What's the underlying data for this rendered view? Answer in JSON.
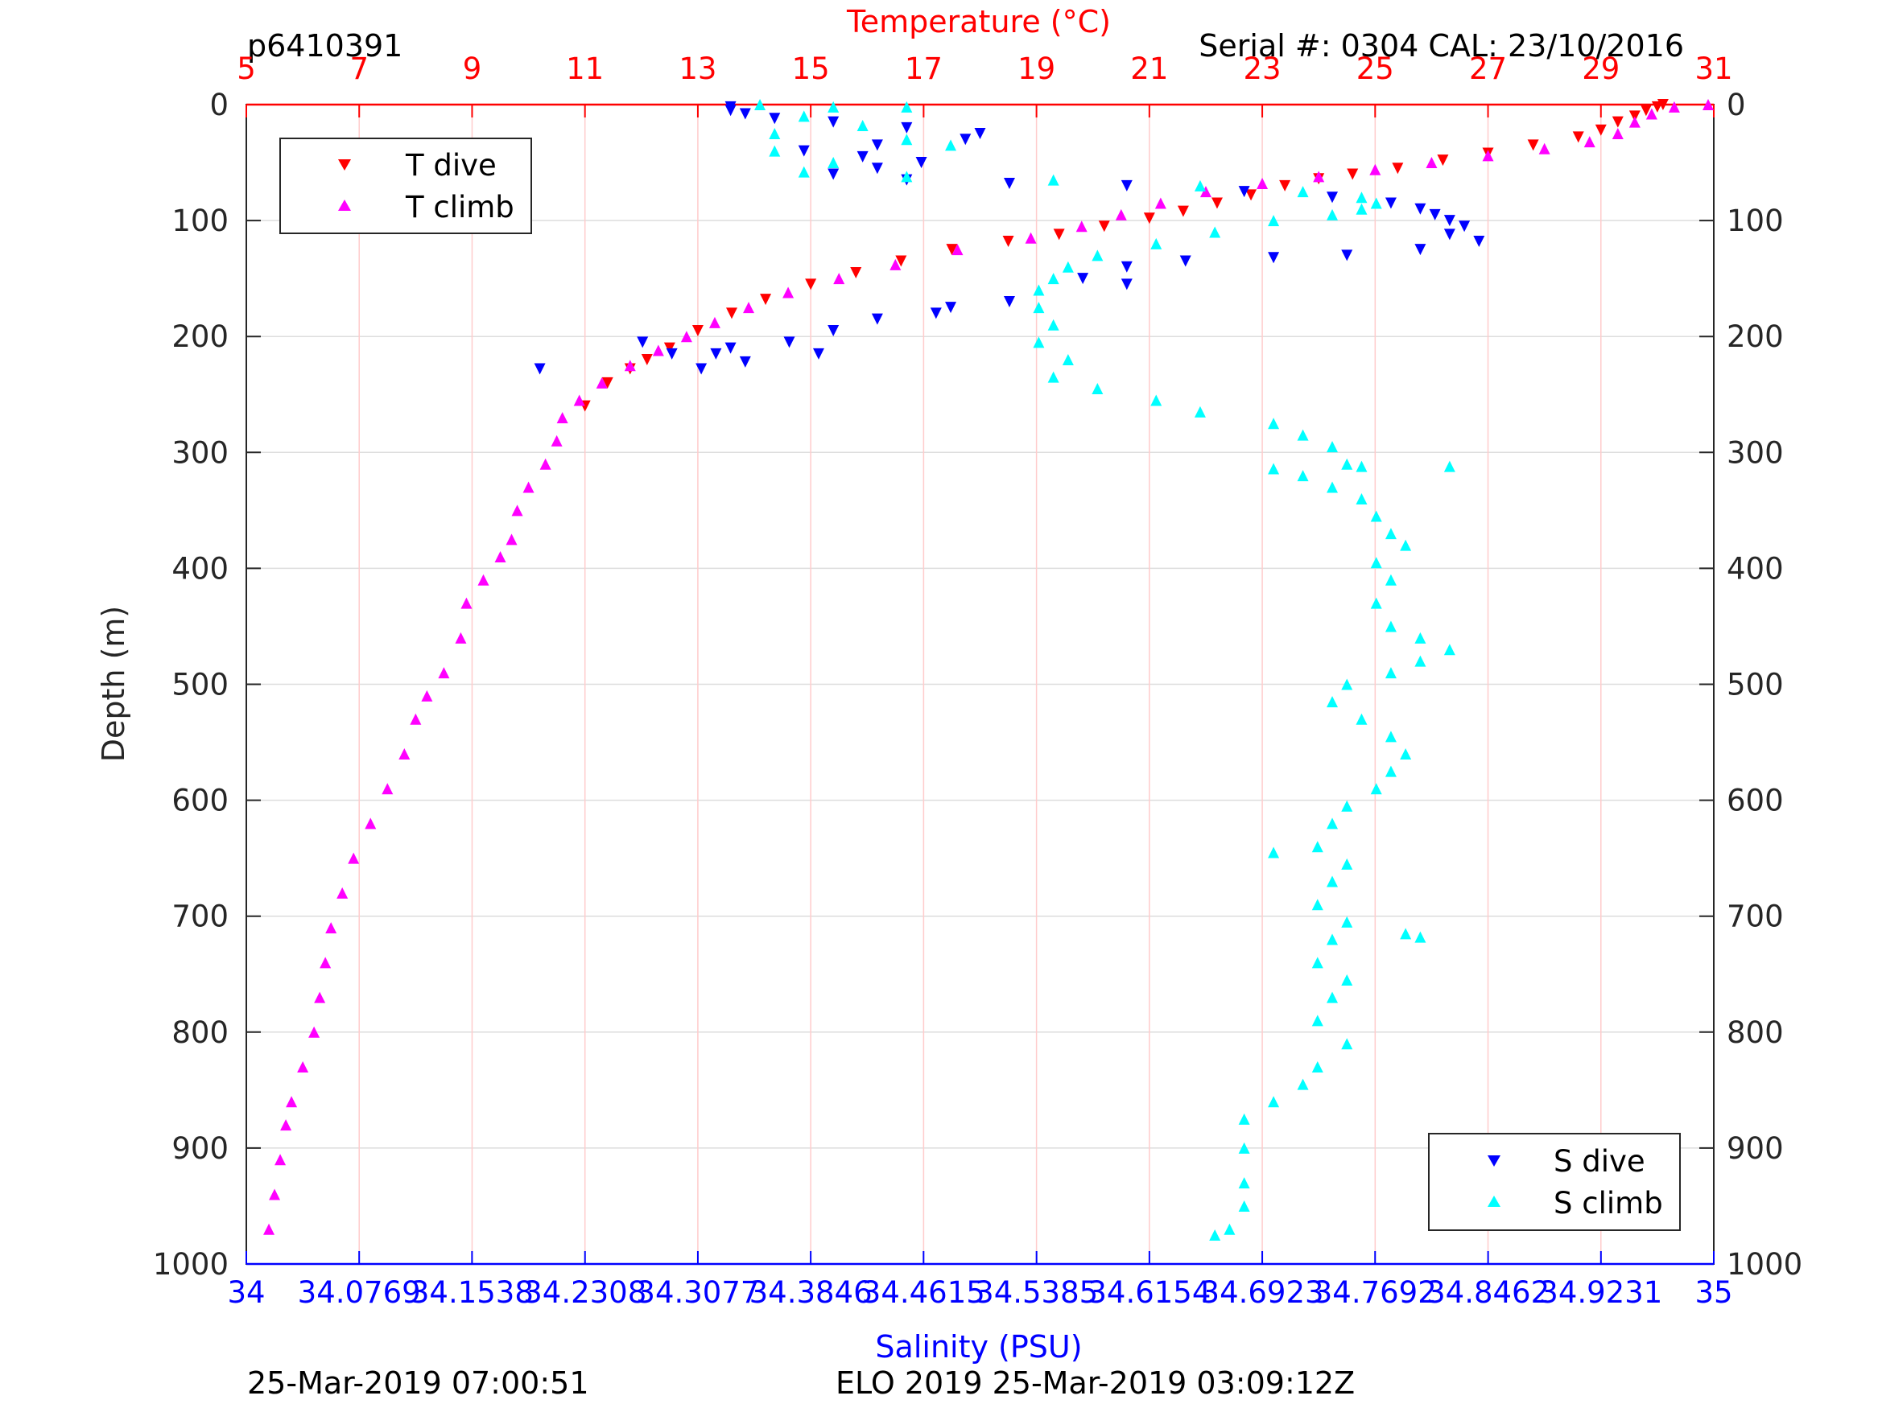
{
  "header": {
    "id": "p6410391",
    "serial": "Serial #: 0304  CAL: 23/10/2016"
  },
  "footer": {
    "left": "25-Mar-2019 07:00:51",
    "center": "ELO 2019 25-Mar-2019 03:09:12Z"
  },
  "colors": {
    "t_dive": "#ff0000",
    "t_climb": "#ff00ff",
    "s_dive": "#0000ff",
    "s_climb": "#00ffff",
    "temp_axis": "#ff0000",
    "sal_axis": "#0000ff",
    "temp_grid": "#ffcccc",
    "depth_grid": "#dddddd"
  },
  "chart_data": {
    "type": "scatter",
    "title": "",
    "temperature_axis": {
      "label": "Temperature (°C)",
      "range": [
        5,
        31
      ],
      "ticks": [
        "5",
        "7",
        "9",
        "11",
        "13",
        "15",
        "17",
        "19",
        "21",
        "23",
        "25",
        "27",
        "29",
        "31"
      ]
    },
    "salinity_axis": {
      "label": "Salinity (PSU)",
      "range": [
        34,
        35
      ],
      "ticks": [
        "34",
        "34.0769",
        "34.1538",
        "34.2308",
        "34.3077",
        "34.3846",
        "34.4615",
        "34.5385",
        "34.6154",
        "34.6923",
        "34.7692",
        "34.8462",
        "34.9231",
        "35"
      ]
    },
    "depth_axis": {
      "label": "Depth (m)",
      "range": [
        0,
        1000
      ],
      "reversed": true,
      "ticks": [
        "0",
        "100",
        "200",
        "300",
        "400",
        "500",
        "600",
        "700",
        "800",
        "900",
        "1000"
      ]
    },
    "grid": true,
    "legends": [
      {
        "position": "top-left",
        "entries": [
          "T dive",
          "T climb"
        ]
      },
      {
        "position": "bottom-right",
        "entries": [
          "S dive",
          "S climb"
        ]
      }
    ],
    "series": [
      {
        "name": "T dive",
        "variable": "temperature",
        "marker": "triangle-down",
        "points": [
          [
            30.1,
            0
          ],
          [
            30.0,
            2
          ],
          [
            29.8,
            5
          ],
          [
            29.6,
            10
          ],
          [
            29.3,
            15
          ],
          [
            29.0,
            22
          ],
          [
            28.6,
            28
          ],
          [
            27.8,
            35
          ],
          [
            27.0,
            42
          ],
          [
            26.2,
            48
          ],
          [
            25.4,
            55
          ],
          [
            24.6,
            60
          ],
          [
            24.0,
            64
          ],
          [
            23.4,
            70
          ],
          [
            22.8,
            78
          ],
          [
            22.2,
            85
          ],
          [
            21.6,
            92
          ],
          [
            21.0,
            98
          ],
          [
            20.2,
            105
          ],
          [
            19.4,
            112
          ],
          [
            18.5,
            118
          ],
          [
            17.5,
            125
          ],
          [
            16.6,
            135
          ],
          [
            15.8,
            145
          ],
          [
            15.0,
            155
          ],
          [
            14.2,
            168
          ],
          [
            13.6,
            180
          ],
          [
            13.0,
            195
          ],
          [
            12.5,
            210
          ],
          [
            12.1,
            220
          ],
          [
            11.8,
            228
          ],
          [
            11.4,
            240
          ],
          [
            11.0,
            260
          ]
        ]
      },
      {
        "name": "T climb",
        "variable": "temperature",
        "marker": "triangle-up",
        "points": [
          [
            30.9,
            0
          ],
          [
            30.3,
            2
          ],
          [
            29.9,
            8
          ],
          [
            29.6,
            15
          ],
          [
            29.3,
            25
          ],
          [
            28.8,
            32
          ],
          [
            28.0,
            38
          ],
          [
            27.0,
            44
          ],
          [
            26.0,
            50
          ],
          [
            25.0,
            56
          ],
          [
            24.0,
            62
          ],
          [
            23.0,
            68
          ],
          [
            22.0,
            75
          ],
          [
            21.2,
            85
          ],
          [
            20.5,
            95
          ],
          [
            19.8,
            105
          ],
          [
            18.9,
            115
          ],
          [
            17.6,
            125
          ],
          [
            16.5,
            138
          ],
          [
            15.5,
            150
          ],
          [
            14.6,
            162
          ],
          [
            13.9,
            175
          ],
          [
            13.3,
            188
          ],
          [
            12.8,
            200
          ],
          [
            12.3,
            212
          ],
          [
            11.8,
            225
          ],
          [
            11.3,
            240
          ],
          [
            10.9,
            255
          ],
          [
            10.6,
            270
          ],
          [
            10.5,
            290
          ],
          [
            10.3,
            310
          ],
          [
            10.0,
            330
          ],
          [
            9.8,
            350
          ],
          [
            9.7,
            375
          ],
          [
            9.5,
            390
          ],
          [
            9.2,
            410
          ],
          [
            8.9,
            430
          ],
          [
            8.8,
            460
          ],
          [
            8.5,
            490
          ],
          [
            8.2,
            510
          ],
          [
            8.0,
            530
          ],
          [
            7.8,
            560
          ],
          [
            7.5,
            590
          ],
          [
            7.2,
            620
          ],
          [
            6.9,
            650
          ],
          [
            6.7,
            680
          ],
          [
            6.5,
            710
          ],
          [
            6.4,
            740
          ],
          [
            6.3,
            770
          ],
          [
            6.2,
            800
          ],
          [
            6.0,
            830
          ],
          [
            5.8,
            860
          ],
          [
            5.7,
            880
          ],
          [
            5.6,
            910
          ],
          [
            5.5,
            940
          ],
          [
            5.4,
            970
          ]
        ]
      },
      {
        "name": "S dive",
        "variable": "salinity",
        "marker": "triangle-down",
        "points": [
          [
            34.33,
            2
          ],
          [
            34.33,
            5
          ],
          [
            34.34,
            8
          ],
          [
            34.36,
            12
          ],
          [
            34.4,
            15
          ],
          [
            34.45,
            20
          ],
          [
            34.5,
            25
          ],
          [
            34.49,
            30
          ],
          [
            34.43,
            35
          ],
          [
            34.38,
            40
          ],
          [
            34.42,
            45
          ],
          [
            34.46,
            50
          ],
          [
            34.43,
            55
          ],
          [
            34.4,
            60
          ],
          [
            34.45,
            65
          ],
          [
            34.52,
            68
          ],
          [
            34.6,
            70
          ],
          [
            34.68,
            75
          ],
          [
            34.74,
            80
          ],
          [
            34.78,
            85
          ],
          [
            34.8,
            90
          ],
          [
            34.81,
            95
          ],
          [
            34.82,
            100
          ],
          [
            34.83,
            105
          ],
          [
            34.82,
            112
          ],
          [
            34.84,
            118
          ],
          [
            34.8,
            125
          ],
          [
            34.75,
            130
          ],
          [
            34.7,
            132
          ],
          [
            34.64,
            135
          ],
          [
            34.6,
            140
          ],
          [
            34.57,
            150
          ],
          [
            34.6,
            155
          ],
          [
            34.52,
            170
          ],
          [
            34.48,
            175
          ],
          [
            34.43,
            185
          ],
          [
            34.4,
            195
          ],
          [
            34.37,
            205
          ],
          [
            34.33,
            210
          ],
          [
            34.32,
            215
          ],
          [
            34.34,
            222
          ],
          [
            34.31,
            228
          ],
          [
            34.29,
            215
          ],
          [
            34.27,
            205
          ],
          [
            34.2,
            228
          ],
          [
            34.39,
            215
          ],
          [
            34.47,
            180
          ]
        ]
      },
      {
        "name": "S climb",
        "variable": "salinity",
        "marker": "triangle-up",
        "points": [
          [
            34.35,
            0
          ],
          [
            34.4,
            2
          ],
          [
            34.45,
            2
          ],
          [
            34.38,
            10
          ],
          [
            34.42,
            18
          ],
          [
            34.36,
            25
          ],
          [
            34.45,
            30
          ],
          [
            34.48,
            35
          ],
          [
            34.36,
            40
          ],
          [
            34.4,
            50
          ],
          [
            34.38,
            58
          ],
          [
            34.45,
            62
          ],
          [
            34.55,
            65
          ],
          [
            34.65,
            70
          ],
          [
            34.72,
            75
          ],
          [
            34.76,
            80
          ],
          [
            34.77,
            85
          ],
          [
            34.76,
            90
          ],
          [
            34.74,
            95
          ],
          [
            34.7,
            100
          ],
          [
            34.66,
            110
          ],
          [
            34.62,
            120
          ],
          [
            34.58,
            130
          ],
          [
            34.56,
            140
          ],
          [
            34.55,
            150
          ],
          [
            34.54,
            160
          ],
          [
            34.54,
            175
          ],
          [
            34.55,
            190
          ],
          [
            34.54,
            205
          ],
          [
            34.56,
            220
          ],
          [
            34.55,
            235
          ],
          [
            34.58,
            245
          ],
          [
            34.62,
            255
          ],
          [
            34.65,
            265
          ],
          [
            34.7,
            275
          ],
          [
            34.72,
            285
          ],
          [
            34.74,
            295
          ],
          [
            34.75,
            310
          ],
          [
            34.72,
            320
          ],
          [
            34.74,
            330
          ],
          [
            34.76,
            340
          ],
          [
            34.77,
            355
          ],
          [
            34.78,
            370
          ],
          [
            34.79,
            380
          ],
          [
            34.77,
            395
          ],
          [
            34.78,
            410
          ],
          [
            34.77,
            430
          ],
          [
            34.78,
            450
          ],
          [
            34.8,
            460
          ],
          [
            34.82,
            470
          ],
          [
            34.8,
            480
          ],
          [
            34.78,
            490
          ],
          [
            34.75,
            500
          ],
          [
            34.74,
            515
          ],
          [
            34.76,
            530
          ],
          [
            34.78,
            545
          ],
          [
            34.79,
            560
          ],
          [
            34.78,
            575
          ],
          [
            34.77,
            590
          ],
          [
            34.75,
            605
          ],
          [
            34.74,
            620
          ],
          [
            34.73,
            640
          ],
          [
            34.75,
            655
          ],
          [
            34.74,
            670
          ],
          [
            34.73,
            690
          ],
          [
            34.75,
            705
          ],
          [
            34.74,
            720
          ],
          [
            34.73,
            740
          ],
          [
            34.75,
            755
          ],
          [
            34.74,
            770
          ],
          [
            34.73,
            790
          ],
          [
            34.75,
            810
          ],
          [
            34.73,
            830
          ],
          [
            34.72,
            845
          ],
          [
            34.7,
            860
          ],
          [
            34.68,
            875
          ],
          [
            34.68,
            900
          ],
          [
            34.68,
            930
          ],
          [
            34.68,
            950
          ],
          [
            34.67,
            970
          ],
          [
            34.66,
            975
          ],
          [
            34.76,
            312
          ],
          [
            34.82,
            312
          ],
          [
            34.7,
            314
          ],
          [
            34.7,
            645
          ],
          [
            34.79,
            715
          ],
          [
            34.8,
            718
          ]
        ]
      }
    ]
  }
}
